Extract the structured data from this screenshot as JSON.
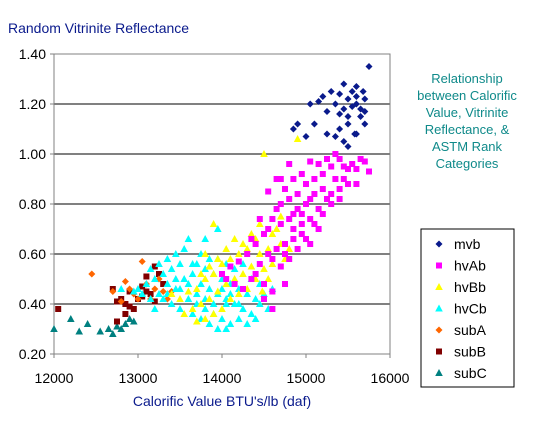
{
  "chart_data": {
    "type": "scatter",
    "title": "Random Vitrinite Reflectance",
    "xlabel": "Calorific Value BTU's/lb (daf)",
    "ylabel": "",
    "annotation": [
      "Relationship",
      "between Calorific",
      "Value, Vitrinite",
      "Reflectance, &",
      "ASTM Rank",
      "Categories"
    ],
    "xlim": [
      12000,
      16000
    ],
    "ylim": [
      0.2,
      1.4
    ],
    "xticks": [
      "12000",
      "13000",
      "14000",
      "15000",
      "16000"
    ],
    "yticks": [
      "0.20",
      "0.40",
      "0.60",
      "0.80",
      "1.00",
      "1.20",
      "1.40"
    ],
    "grid": "horizontal",
    "legend_position": "right",
    "series": [
      {
        "name": "mvb",
        "marker": "diamond",
        "color": "#0a1a8c",
        "points": [
          [
            15400,
            1.24
          ],
          [
            15500,
            1.22
          ],
          [
            15600,
            1.2
          ],
          [
            15700,
            1.22
          ],
          [
            15450,
            1.28
          ],
          [
            15550,
            1.25
          ],
          [
            15650,
            1.18
          ],
          [
            15350,
            1.2
          ],
          [
            15600,
            1.27
          ],
          [
            15500,
            1.15
          ],
          [
            15400,
            1.1
          ],
          [
            15250,
            1.17
          ],
          [
            15150,
            1.21
          ],
          [
            15700,
            1.12
          ],
          [
            15600,
            1.08
          ],
          [
            15450,
            1.05
          ],
          [
            15250,
            1.08
          ],
          [
            15100,
            1.12
          ],
          [
            15050,
            1.2
          ],
          [
            15000,
            1.07
          ],
          [
            14900,
            1.12
          ],
          [
            14850,
            1.1
          ],
          [
            15350,
            1.07
          ],
          [
            15500,
            1.03
          ],
          [
            15750,
            1.35
          ],
          [
            15650,
            1.15
          ],
          [
            15550,
            1.19
          ],
          [
            15450,
            1.18
          ],
          [
            15300,
            1.25
          ],
          [
            15200,
            1.23
          ],
          [
            15700,
            1.17
          ],
          [
            15600,
            1.23
          ],
          [
            15500,
            1.12
          ],
          [
            15400,
            1.16
          ],
          [
            15680,
            1.25
          ],
          [
            15580,
            1.08
          ]
        ]
      },
      {
        "name": "hvAb",
        "marker": "square",
        "color": "#ff00ff",
        "points": [
          [
            14600,
            0.58
          ],
          [
            14750,
            0.6
          ],
          [
            14850,
            0.66
          ],
          [
            14950,
            0.72
          ],
          [
            15050,
            0.74
          ],
          [
            15150,
            0.78
          ],
          [
            15250,
            0.82
          ],
          [
            15300,
            0.84
          ],
          [
            15400,
            0.86
          ],
          [
            15450,
            0.9
          ],
          [
            15500,
            0.88
          ],
          [
            15550,
            0.96
          ],
          [
            15600,
            0.94
          ],
          [
            15700,
            0.97
          ],
          [
            15750,
            0.93
          ],
          [
            15400,
            0.98
          ],
          [
            15300,
            0.95
          ],
          [
            15200,
            0.92
          ],
          [
            15100,
            0.9
          ],
          [
            15000,
            0.88
          ],
          [
            14900,
            0.84
          ],
          [
            14800,
            0.82
          ],
          [
            14700,
            0.8
          ],
          [
            14600,
            0.74
          ],
          [
            14500,
            0.68
          ],
          [
            14400,
            0.64
          ],
          [
            14300,
            0.6
          ],
          [
            14200,
            0.57
          ],
          [
            14100,
            0.55
          ],
          [
            14000,
            0.52
          ],
          [
            14550,
            0.7
          ],
          [
            14650,
            0.78
          ],
          [
            14750,
            0.86
          ],
          [
            14850,
            0.9
          ],
          [
            14950,
            0.92
          ],
          [
            15050,
            0.97
          ],
          [
            15150,
            0.96
          ],
          [
            15250,
            0.98
          ],
          [
            15350,
            1.0
          ],
          [
            15450,
            0.95
          ],
          [
            14700,
            0.72
          ],
          [
            14800,
            0.74
          ],
          [
            14900,
            0.78
          ],
          [
            15000,
            0.8
          ],
          [
            15100,
            0.84
          ],
          [
            15200,
            0.86
          ],
          [
            14750,
            0.64
          ],
          [
            14850,
            0.7
          ],
          [
            14950,
            0.76
          ],
          [
            15050,
            0.82
          ],
          [
            14650,
            0.62
          ],
          [
            14550,
            0.6
          ],
          [
            14450,
            0.56
          ],
          [
            14350,
            0.5
          ],
          [
            14250,
            0.46
          ],
          [
            14150,
            0.48
          ],
          [
            14050,
            0.5
          ],
          [
            14400,
            0.52
          ],
          [
            14500,
            0.48
          ],
          [
            14600,
            0.45
          ],
          [
            14700,
            0.55
          ],
          [
            14800,
            0.58
          ],
          [
            14900,
            0.62
          ],
          [
            15000,
            0.66
          ],
          [
            15100,
            0.72
          ],
          [
            15200,
            0.76
          ],
          [
            15300,
            0.8
          ],
          [
            15400,
            0.82
          ],
          [
            14650,
            0.9
          ],
          [
            14550,
            0.85
          ],
          [
            14700,
            0.9
          ],
          [
            14800,
            0.96
          ],
          [
            14850,
            0.76
          ],
          [
            14950,
            0.68
          ],
          [
            15050,
            0.64
          ],
          [
            15150,
            0.7
          ],
          [
            14600,
            0.38
          ],
          [
            14500,
            0.42
          ],
          [
            14750,
            0.48
          ],
          [
            15350,
            0.9
          ],
          [
            15500,
            0.94
          ],
          [
            15600,
            0.88
          ],
          [
            15650,
            0.98
          ],
          [
            14450,
            0.74
          ],
          [
            14350,
            0.66
          ]
        ]
      },
      {
        "name": "hvBb",
        "marker": "triangle",
        "color": "#ffff00",
        "points": [
          [
            14500,
            1.0
          ],
          [
            14400,
            0.66
          ],
          [
            14300,
            0.62
          ],
          [
            14200,
            0.6
          ],
          [
            14100,
            0.58
          ],
          [
            14000,
            0.56
          ],
          [
            13900,
            0.52
          ],
          [
            13800,
            0.5
          ],
          [
            13700,
            0.46
          ],
          [
            14350,
            0.55
          ],
          [
            14250,
            0.52
          ],
          [
            14150,
            0.5
          ],
          [
            14050,
            0.48
          ],
          [
            13950,
            0.45
          ],
          [
            13850,
            0.42
          ],
          [
            13750,
            0.4
          ],
          [
            13650,
            0.38
          ],
          [
            13550,
            0.36
          ],
          [
            14450,
            0.6
          ],
          [
            14550,
            0.62
          ],
          [
            14600,
            0.56
          ],
          [
            14500,
            0.54
          ],
          [
            14400,
            0.5
          ],
          [
            14300,
            0.46
          ],
          [
            14200,
            0.44
          ],
          [
            14100,
            0.42
          ],
          [
            14000,
            0.38
          ],
          [
            13900,
            0.36
          ],
          [
            13800,
            0.34
          ],
          [
            13700,
            0.33
          ],
          [
            13900,
            0.72
          ],
          [
            13800,
            0.6
          ],
          [
            14650,
            0.7
          ],
          [
            14700,
            0.64
          ],
          [
            14750,
            0.58
          ],
          [
            14800,
            0.62
          ],
          [
            14600,
            0.68
          ],
          [
            14450,
            0.72
          ],
          [
            14350,
            0.68
          ],
          [
            14250,
            0.64
          ],
          [
            14150,
            0.66
          ],
          [
            14050,
            0.62
          ],
          [
            13950,
            0.58
          ],
          [
            13850,
            0.55
          ],
          [
            13750,
            0.52
          ],
          [
            14550,
            0.5
          ],
          [
            14480,
            0.45
          ],
          [
            13600,
            0.45
          ],
          [
            13500,
            0.42
          ],
          [
            13400,
            0.44
          ],
          [
            14900,
            1.06
          ],
          [
            14700,
            0.75
          ]
        ]
      },
      {
        "name": "hvCb",
        "marker": "triangle",
        "color": "#00ffff",
        "points": [
          [
            13600,
            0.66
          ],
          [
            13500,
            0.56
          ],
          [
            13400,
            0.54
          ],
          [
            13300,
            0.52
          ],
          [
            13200,
            0.5
          ],
          [
            13100,
            0.48
          ],
          [
            13000,
            0.46
          ],
          [
            13550,
            0.5
          ],
          [
            13650,
            0.52
          ],
          [
            13750,
            0.48
          ],
          [
            13850,
            0.46
          ],
          [
            13950,
            0.44
          ],
          [
            14050,
            0.42
          ],
          [
            14150,
            0.4
          ],
          [
            14250,
            0.38
          ],
          [
            14350,
            0.36
          ],
          [
            14450,
            0.4
          ],
          [
            14550,
            0.38
          ],
          [
            13700,
            0.56
          ],
          [
            13800,
            0.54
          ],
          [
            13900,
            0.52
          ],
          [
            14000,
            0.5
          ],
          [
            14100,
            0.48
          ],
          [
            14200,
            0.46
          ],
          [
            14300,
            0.44
          ],
          [
            14400,
            0.42
          ],
          [
            13450,
            0.46
          ],
          [
            13350,
            0.48
          ],
          [
            13250,
            0.44
          ],
          [
            13150,
            0.42
          ],
          [
            13050,
            0.44
          ],
          [
            12950,
            0.45
          ],
          [
            13600,
            0.42
          ],
          [
            13700,
            0.4
          ],
          [
            13800,
            0.38
          ],
          [
            13900,
            0.36
          ],
          [
            14000,
            0.34
          ],
          [
            14100,
            0.32
          ],
          [
            14200,
            0.34
          ],
          [
            13500,
            0.38
          ],
          [
            13650,
            0.36
          ],
          [
            13750,
            0.34
          ],
          [
            13850,
            0.32
          ],
          [
            13950,
            0.3
          ],
          [
            14050,
            0.3
          ],
          [
            13400,
            0.4
          ],
          [
            13300,
            0.42
          ],
          [
            13200,
            0.38
          ],
          [
            14150,
            0.54
          ],
          [
            14250,
            0.56
          ],
          [
            14350,
            0.5
          ],
          [
            14450,
            0.48
          ],
          [
            13550,
            0.62
          ],
          [
            13450,
            0.6
          ],
          [
            13350,
            0.58
          ],
          [
            13950,
            0.58
          ],
          [
            14050,
            0.56
          ],
          [
            13250,
            0.56
          ],
          [
            13150,
            0.54
          ],
          [
            12800,
            0.46
          ],
          [
            13650,
            0.56
          ],
          [
            13750,
            0.6
          ],
          [
            13850,
            0.58
          ],
          [
            14300,
            0.32
          ],
          [
            14400,
            0.34
          ],
          [
            14500,
            0.44
          ],
          [
            14600,
            0.46
          ],
          [
            13700,
            0.44
          ],
          [
            13800,
            0.42
          ],
          [
            13900,
            0.4
          ],
          [
            14000,
            0.46
          ],
          [
            14100,
            0.44
          ],
          [
            14200,
            0.4
          ],
          [
            13600,
            0.48
          ],
          [
            13500,
            0.46
          ],
          [
            13800,
            0.66
          ],
          [
            13950,
            0.7
          ],
          [
            14050,
            0.4
          ],
          [
            13450,
            0.5
          ],
          [
            13350,
            0.44
          ]
        ]
      },
      {
        "name": "subA",
        "marker": "diamond",
        "color": "#ff6600",
        "points": [
          [
            12450,
            0.52
          ],
          [
            12700,
            0.45
          ],
          [
            12850,
            0.49
          ],
          [
            12950,
            0.44
          ],
          [
            13050,
            0.57
          ],
          [
            13100,
            0.48
          ],
          [
            13200,
            0.46
          ],
          [
            13300,
            0.45
          ],
          [
            13350,
            0.42
          ],
          [
            13400,
            0.45
          ],
          [
            13150,
            0.42
          ],
          [
            13000,
            0.42
          ],
          [
            12900,
            0.46
          ],
          [
            12800,
            0.41
          ],
          [
            13250,
            0.5
          ]
        ]
      },
      {
        "name": "subB",
        "marker": "square",
        "color": "#800000",
        "points": [
          [
            12050,
            0.38
          ],
          [
            12700,
            0.46
          ],
          [
            12750,
            0.41
          ],
          [
            12800,
            0.42
          ],
          [
            12850,
            0.4
          ],
          [
            12900,
            0.45
          ],
          [
            12950,
            0.38
          ],
          [
            13000,
            0.42
          ],
          [
            13050,
            0.47
          ],
          [
            13100,
            0.45
          ],
          [
            13150,
            0.44
          ],
          [
            13200,
            0.41
          ],
          [
            13250,
            0.52
          ],
          [
            13300,
            0.48
          ],
          [
            12750,
            0.33
          ],
          [
            12850,
            0.36
          ],
          [
            12900,
            0.39
          ],
          [
            13100,
            0.51
          ],
          [
            13200,
            0.55
          ],
          [
            13050,
            0.43
          ]
        ]
      },
      {
        "name": "subC",
        "marker": "triangle",
        "color": "#008080",
        "points": [
          [
            12000,
            0.3
          ],
          [
            12300,
            0.29
          ],
          [
            12400,
            0.32
          ],
          [
            12550,
            0.29
          ],
          [
            12650,
            0.3
          ],
          [
            12750,
            0.31
          ],
          [
            12800,
            0.3
          ],
          [
            12850,
            0.32
          ],
          [
            12950,
            0.33
          ],
          [
            12200,
            0.34
          ],
          [
            12700,
            0.28
          ],
          [
            12900,
            0.34
          ]
        ]
      }
    ]
  }
}
